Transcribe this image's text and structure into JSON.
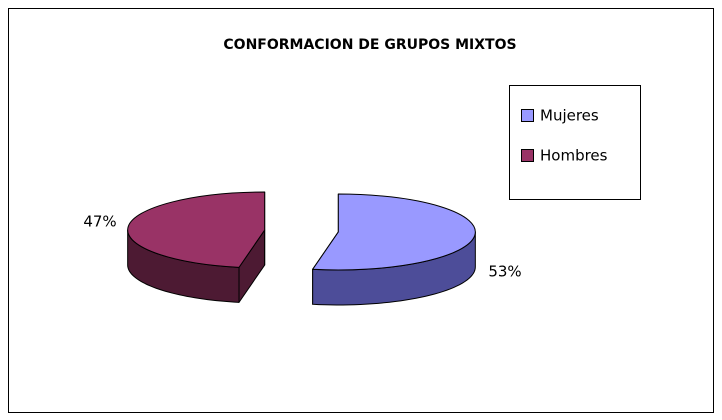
{
  "chart_data": {
    "type": "pie",
    "title": "CONFORMACION DE GRUPOS MIXTOS",
    "categories": [
      "Mujeres",
      "Hombres"
    ],
    "values": [
      53,
      47
    ],
    "value_labels": [
      "53%",
      "47%"
    ],
    "colors": [
      "#9999ff",
      "#993366"
    ],
    "side_colors": [
      "#4d4d99",
      "#4d1a33"
    ],
    "legend": "right",
    "three_d": true,
    "exploded": true
  }
}
